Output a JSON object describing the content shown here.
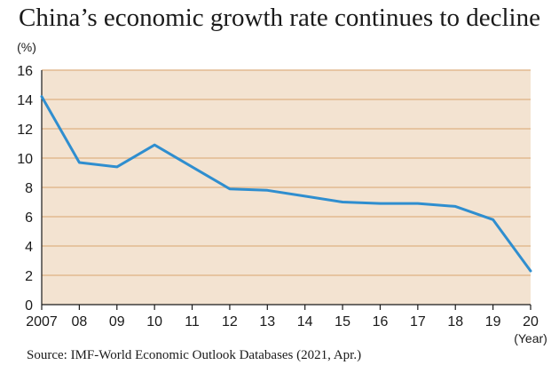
{
  "chart_data": {
    "type": "line",
    "title": "China’s economic growth rate continues to decline",
    "y_unit_label": "(%)",
    "x_unit_label": "(Year)",
    "x_tick_labels": [
      "2007",
      "08",
      "09",
      "10",
      "11",
      "12",
      "13",
      "14",
      "15",
      "16",
      "17",
      "18",
      "19",
      "20"
    ],
    "x": [
      2007,
      2008,
      2009,
      2010,
      2011,
      2012,
      2013,
      2014,
      2015,
      2016,
      2017,
      2018,
      2019,
      2020
    ],
    "series": [
      {
        "values": [
          14.2,
          9.7,
          9.4,
          10.9,
          9.4,
          7.9,
          7.8,
          7.4,
          7.0,
          6.9,
          6.9,
          6.7,
          5.8,
          2.3
        ]
      }
    ],
    "y_ticks": [
      0,
      2,
      4,
      6,
      8,
      10,
      12,
      14,
      16
    ],
    "xlim": [
      2007,
      2020
    ],
    "ylim": [
      0,
      16
    ],
    "grid": true,
    "legend": "none",
    "colors": {
      "background": "#f3e3d1",
      "grid": "#e2b98f",
      "line": "#2f8ecf",
      "axis": "#1a1a1a"
    },
    "source": "Source: IMF-World Economic Outlook Databases (2021, Apr.)"
  }
}
